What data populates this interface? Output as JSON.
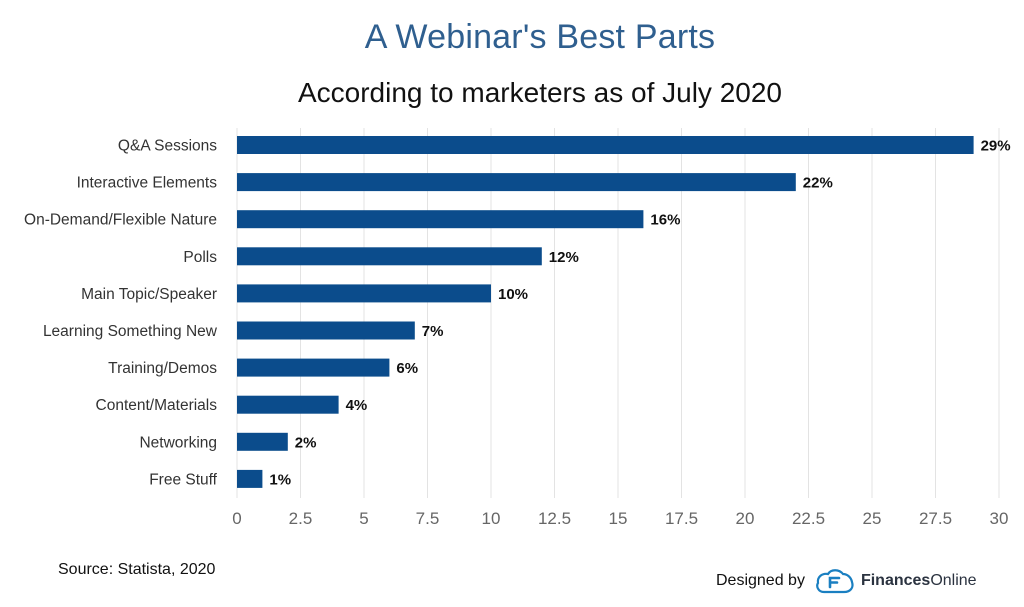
{
  "header": {
    "title": "A Webinar's Best Parts",
    "subtitle": "According to marketers as of July 2020"
  },
  "footer": {
    "source": "Source: Statista, 2020",
    "designed_by": "Designed by",
    "brand_bold": "Finances",
    "brand_regular": "Online",
    "brand_icon": "financesonline-logo-icon"
  },
  "colors": {
    "title": "#2f5f8f",
    "bar": "#0b4c8c",
    "grid": "#e3e3e3",
    "axis_text": "#666666",
    "label_text": "#333333",
    "value_text": "#111111"
  },
  "chart_data": {
    "type": "bar",
    "orientation": "horizontal",
    "title": "A Webinar's Best Parts",
    "subtitle": "According to marketers as of July 2020",
    "categories": [
      "Q&A Sessions",
      "Interactive Elements",
      "On-Demand/Flexible Nature",
      "Polls",
      "Main Topic/Speaker",
      "Learning Something New",
      "Training/Demos",
      "Content/Materials",
      "Networking",
      "Free Stuff"
    ],
    "values": [
      29,
      22,
      16,
      12,
      10,
      7,
      6,
      4,
      2,
      1
    ],
    "value_labels": [
      "29%",
      "22%",
      "16%",
      "12%",
      "10%",
      "7%",
      "6%",
      "4%",
      "2%",
      "1%"
    ],
    "xlim": [
      0,
      30
    ],
    "xticks": [
      "0",
      "2.5",
      "5",
      "7.5",
      "10",
      "12.5",
      "15",
      "17.5",
      "20",
      "22.5",
      "25",
      "27.5",
      "30"
    ],
    "xlabel": "",
    "ylabel": "",
    "grid": "vertical",
    "legend": "none"
  }
}
